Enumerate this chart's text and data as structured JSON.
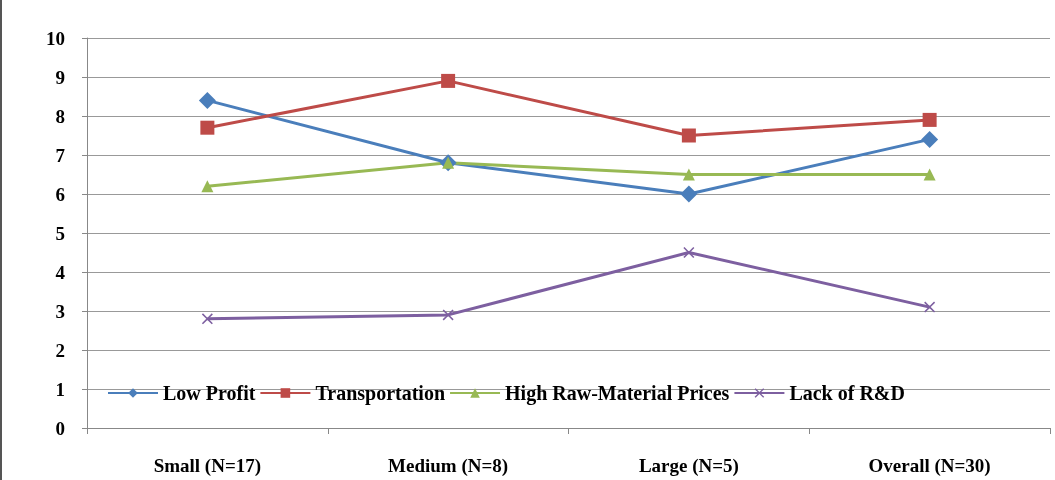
{
  "chart_data": {
    "type": "line",
    "categories": [
      "Small (N=17)",
      "Medium (N=8)",
      "Large (N=5)",
      "Overall (N=30)"
    ],
    "series": [
      {
        "name": "Low Profit",
        "color": "#4a7ebb",
        "marker": "diamond",
        "values": [
          8.4,
          6.8,
          6.0,
          7.4
        ]
      },
      {
        "name": "Transportation",
        "color": "#be4b48",
        "marker": "square",
        "values": [
          7.7,
          8.9,
          7.5,
          7.9
        ]
      },
      {
        "name": "High Raw-Material Prices",
        "color": "#98b954",
        "marker": "triangle",
        "values": [
          6.2,
          6.8,
          6.5,
          6.5
        ]
      },
      {
        "name": "Lack of R&D",
        "color": "#7d5fa0",
        "marker": "cross",
        "values": [
          2.8,
          2.9,
          4.5,
          3.1
        ]
      }
    ],
    "ylim": [
      0,
      10
    ],
    "yticks": [
      0,
      1,
      2,
      3,
      4,
      5,
      6,
      7,
      8,
      9,
      10
    ],
    "grid": "y",
    "legend": "bottom"
  }
}
